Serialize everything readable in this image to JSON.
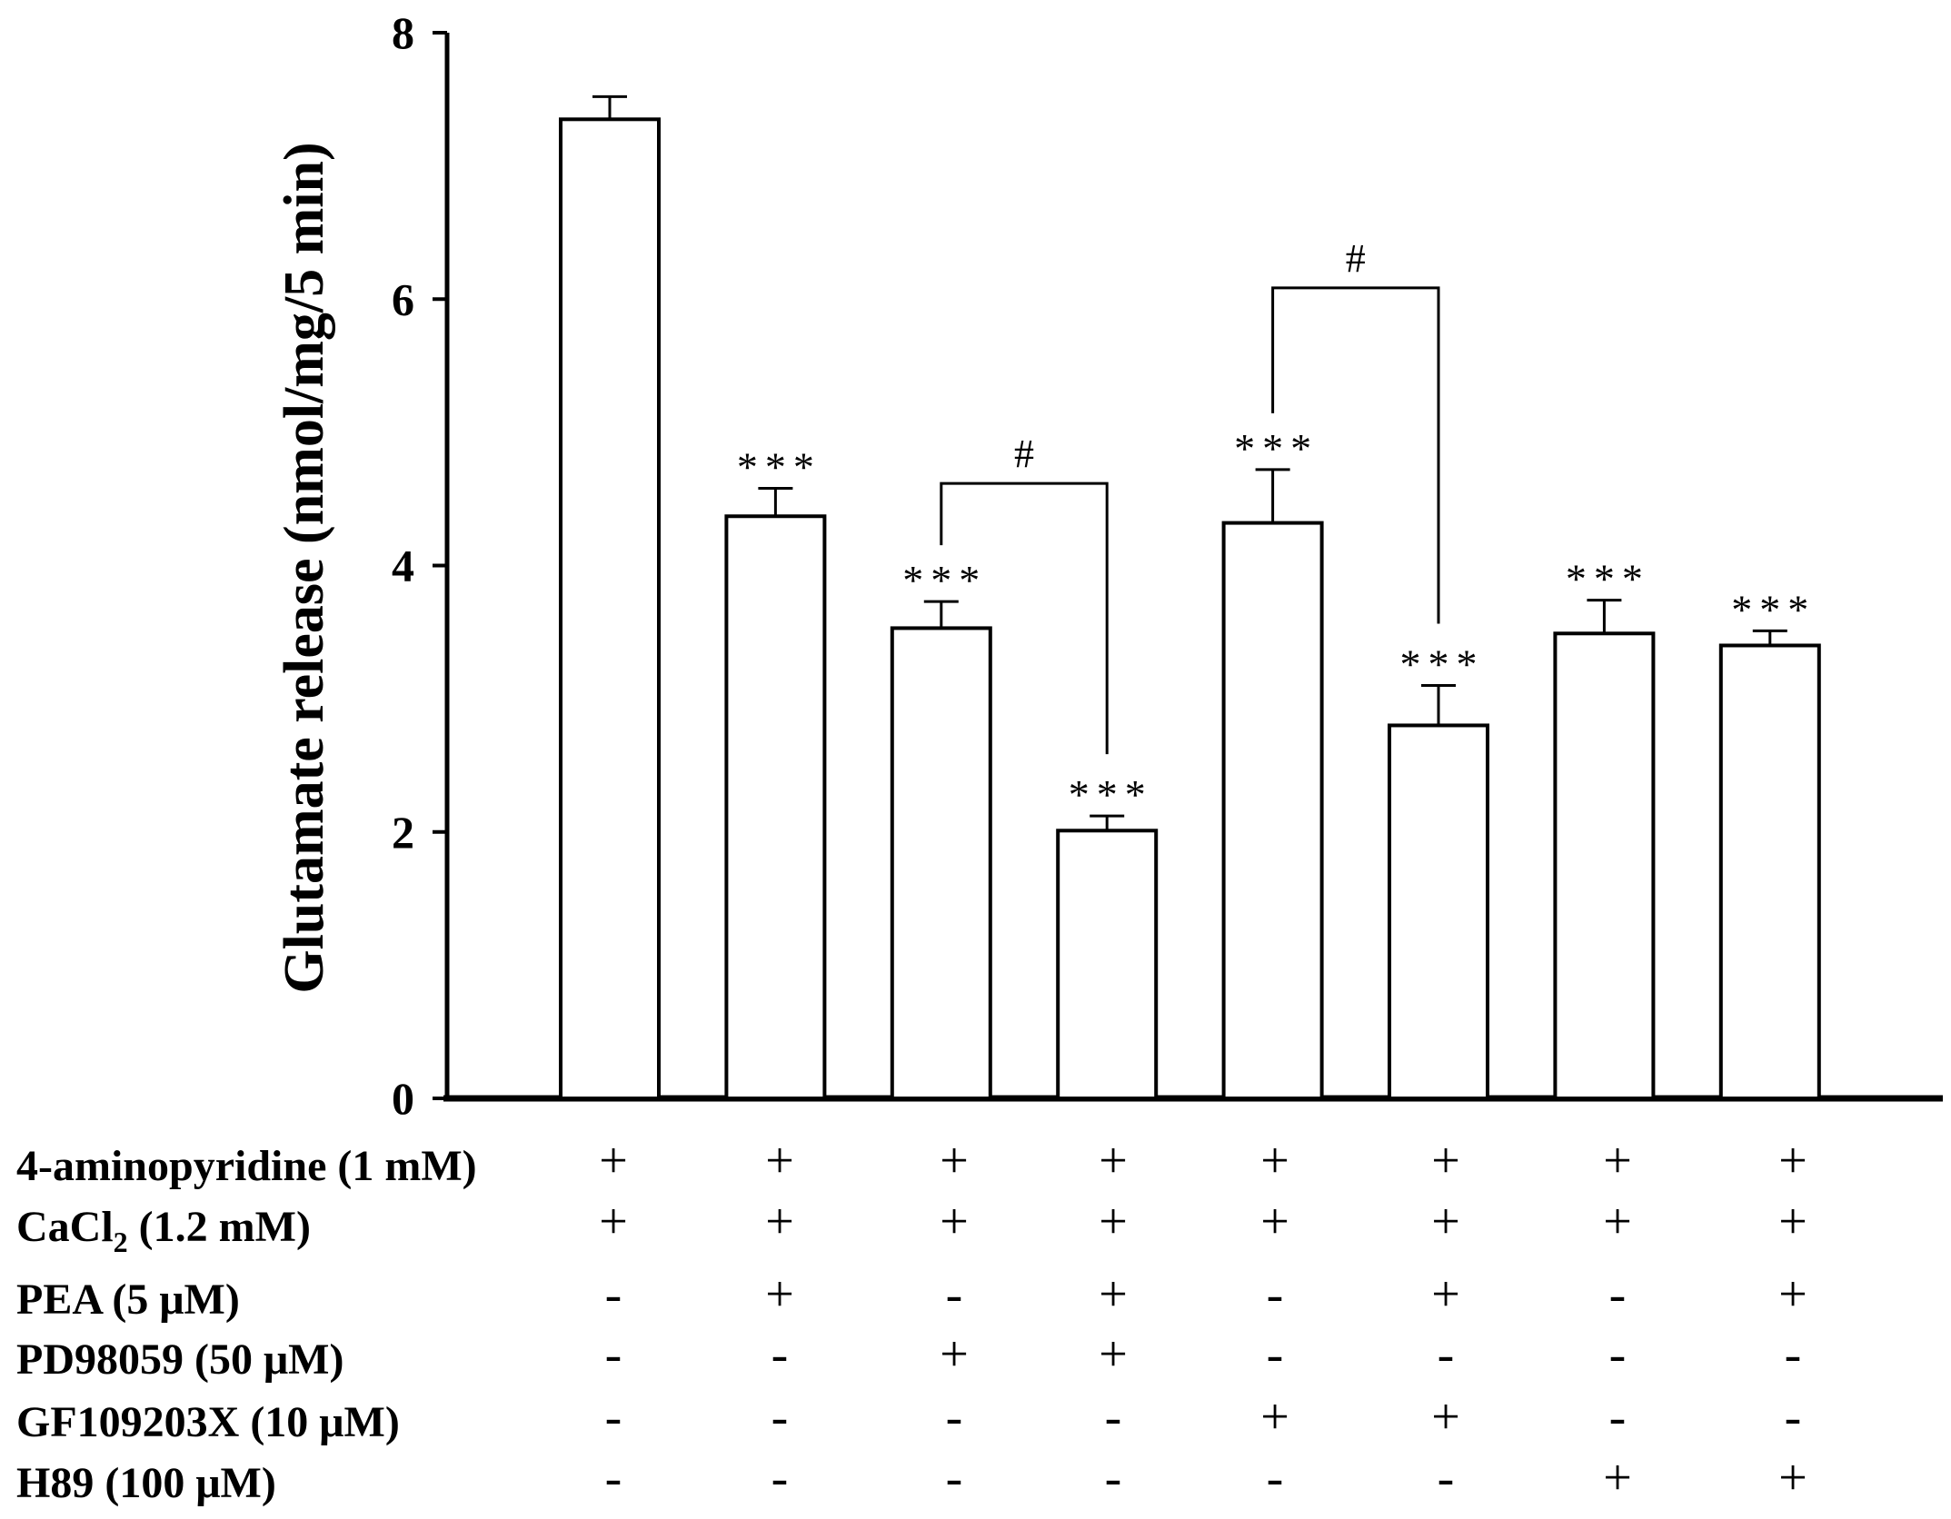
{
  "chart_data": {
    "type": "bar",
    "ylabel": "Glutamate release (nmol/mg/5 min)",
    "ylim": [
      0,
      8
    ],
    "yticks": [
      0,
      2,
      4,
      6,
      8
    ],
    "values": [
      7.35,
      4.37,
      3.53,
      2.01,
      4.32,
      2.8,
      3.49,
      3.4
    ],
    "errors": [
      0.17,
      0.21,
      0.2,
      0.11,
      0.4,
      0.3,
      0.25,
      0.11
    ],
    "significance": [
      "",
      "***",
      "***",
      "***",
      "***",
      "***",
      "***",
      "***"
    ],
    "comparisons": [
      {
        "from": 2,
        "to": 3,
        "label": "#"
      },
      {
        "from": 4,
        "to": 5,
        "label": "#"
      }
    ],
    "treatments": [
      {
        "label": "4-aminopyridine (1 mM)",
        "signs": [
          "+",
          "+",
          "+",
          "+",
          "+",
          "+",
          "+",
          "+"
        ]
      },
      {
        "label_main": "CaCl",
        "label_sub": "2",
        "label_rest": " (1.2 mM)",
        "signs": [
          "+",
          "+",
          "+",
          "+",
          "+",
          "+",
          "+",
          "+"
        ]
      },
      {
        "label": "PEA (5 μM)",
        "signs": [
          "-",
          "+",
          "-",
          "+",
          "-",
          "+",
          "-",
          "+"
        ]
      },
      {
        "label": "PD98059 (50 μM)",
        "signs": [
          "-",
          "-",
          "+",
          "+",
          "-",
          "-",
          "-",
          "-"
        ]
      },
      {
        "label": "GF109203X (10 μM)",
        "signs": [
          "-",
          "-",
          "-",
          "-",
          "+",
          "+",
          "-",
          "-"
        ]
      },
      {
        "label": "H89 (100 μM)",
        "signs": [
          "-",
          "-",
          "-",
          "-",
          "-",
          "-",
          "+",
          "+"
        ]
      }
    ]
  }
}
